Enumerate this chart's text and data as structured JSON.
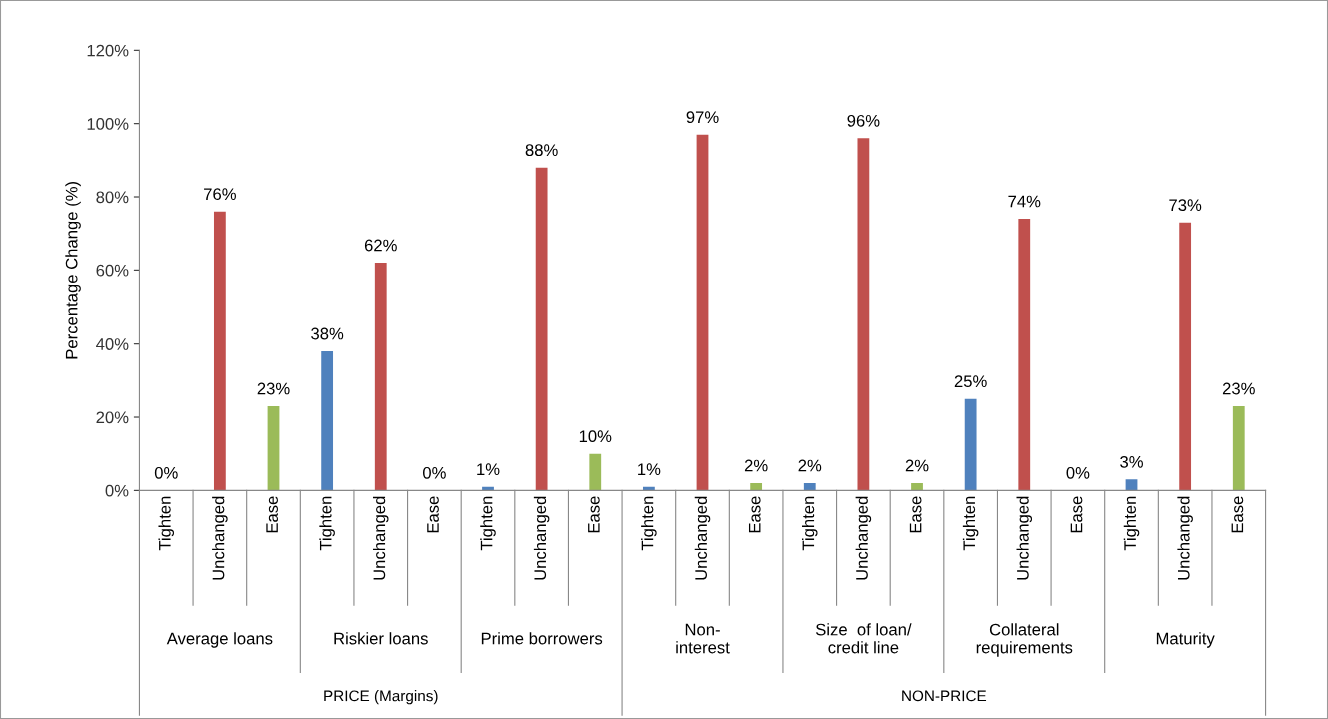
{
  "chart_data": {
    "type": "bar",
    "ylabel": "Percentage Change (%)",
    "categories": [
      "Tighten",
      "Unchanged",
      "Ease",
      "Tighten",
      "Unchanged",
      "Ease",
      "Tighten",
      "Unchanged",
      "Ease",
      "Tighten",
      "Unchanged",
      "Ease",
      "Tighten",
      "Unchanged",
      "Ease",
      "Tighten",
      "Unchanged",
      "Ease",
      "Tighten",
      "Unchanged",
      "Ease"
    ],
    "values": [
      0,
      76,
      23,
      38,
      62,
      0,
      1,
      88,
      10,
      1,
      97,
      2,
      2,
      96,
      2,
      25,
      74,
      0,
      3,
      73,
      23
    ],
    "value_labels": [
      "0%",
      "76%",
      "23%",
      "38%",
      "62%",
      "0%",
      "1%",
      "88%",
      "10%",
      "1%",
      "97%",
      "2%",
      "2%",
      "96%",
      "2%",
      "25%",
      "74%",
      "0%",
      "3%",
      "73%",
      "23%"
    ],
    "colors": [
      "#4f81bd",
      "#c0504d",
      "#9bbb59",
      "#4f81bd",
      "#c0504d",
      "#9bbb59",
      "#4f81bd",
      "#c0504d",
      "#9bbb59",
      "#4f81bd",
      "#c0504d",
      "#9bbb59",
      "#4f81bd",
      "#c0504d",
      "#9bbb59",
      "#4f81bd",
      "#c0504d",
      "#9bbb59",
      "#4f81bd",
      "#c0504d",
      "#9bbb59"
    ],
    "ylim": [
      0,
      120
    ],
    "yticks": [
      {
        "value": 0,
        "label": "0%"
      },
      {
        "value": 20,
        "label": "20%"
      },
      {
        "value": 40,
        "label": "40%"
      },
      {
        "value": 60,
        "label": "60%"
      },
      {
        "value": 80,
        "label": "80%"
      },
      {
        "value": 100,
        "label": "100%"
      },
      {
        "value": 120,
        "label": "120%"
      }
    ],
    "grid": false,
    "legend": false,
    "annotations": [
      "Average loans",
      "Riskier loans",
      "Prime borrowers",
      "Non-\ninterest",
      "Size  of loan/\ncredit line",
      "Collateral\nrequirements",
      "Maturity",
      "PRICE (Margins)",
      "NON-PRICE"
    ]
  }
}
